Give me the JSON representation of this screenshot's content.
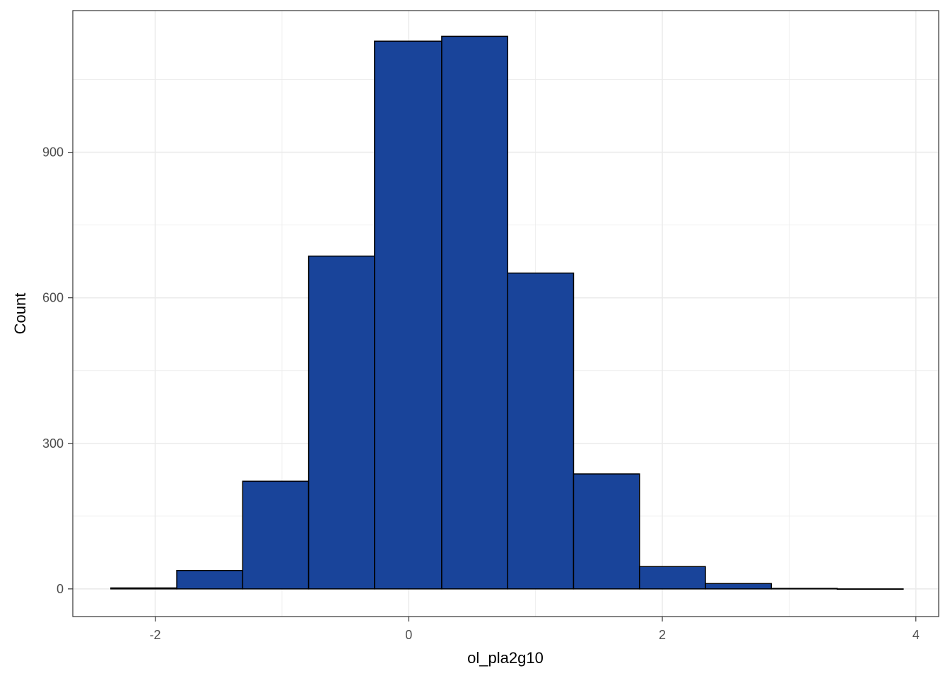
{
  "chart_data": {
    "type": "bar",
    "subtype": "histogram",
    "xlabel": "ol_pla2g10",
    "ylabel": "Count",
    "xlim": [
      -2.65,
      4.18
    ],
    "ylim": [
      -57,
      1192
    ],
    "x_ticks": [
      -2,
      0,
      2,
      4
    ],
    "x_tick_labels": [
      "-2",
      "0",
      "2",
      "4"
    ],
    "y_ticks": [
      0,
      300,
      600,
      900
    ],
    "y_tick_labels": [
      "0",
      "300",
      "600",
      "900"
    ],
    "x_minor_ticks": [
      -1,
      1,
      3
    ],
    "y_minor_ticks": [
      150,
      450,
      750,
      1050
    ],
    "grid": true,
    "colors": {
      "bar_fill": "#19449A",
      "bar_stroke": "#000000",
      "grid": "#EBEBEB",
      "panel_border": "#333333",
      "tick_text": "#4D4D4D"
    },
    "bins": [
      {
        "x0": -2.35,
        "x1": -1.83,
        "count": 2
      },
      {
        "x0": -1.83,
        "x1": -1.31,
        "count": 38
      },
      {
        "x0": -1.31,
        "x1": -0.79,
        "count": 222
      },
      {
        "x0": -0.79,
        "x1": -0.27,
        "count": 686
      },
      {
        "x0": -0.27,
        "x1": 0.26,
        "count": 1129
      },
      {
        "x0": 0.26,
        "x1": 0.78,
        "count": 1139
      },
      {
        "x0": 0.78,
        "x1": 1.3,
        "count": 651
      },
      {
        "x0": 1.3,
        "x1": 1.82,
        "count": 237
      },
      {
        "x0": 1.82,
        "x1": 2.34,
        "count": 46
      },
      {
        "x0": 2.34,
        "x1": 2.86,
        "count": 11
      },
      {
        "x0": 2.86,
        "x1": 3.38,
        "count": 1
      },
      {
        "x0": 3.38,
        "x1": 3.9,
        "count": 0
      }
    ]
  }
}
